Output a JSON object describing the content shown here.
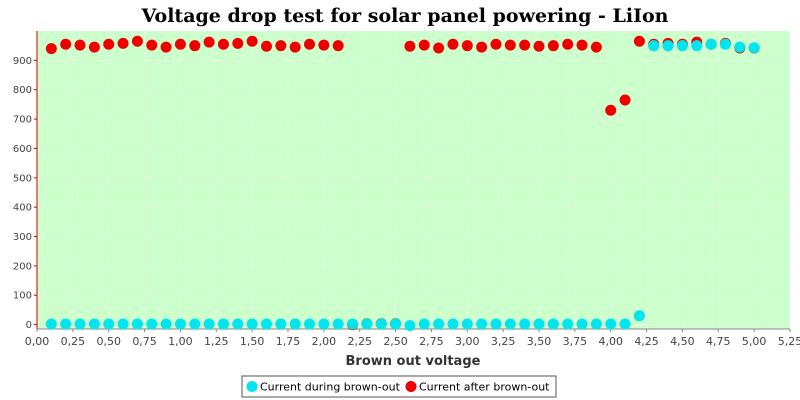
{
  "chart_data": {
    "type": "scatter",
    "title": "Voltage drop test for solar panel powering -  LiIon",
    "xlabel": "Brown out voltage",
    "ylabel": "",
    "xlim": [
      0,
      5.25
    ],
    "ylim": [
      -15,
      1000
    ],
    "x_ticks": [
      "0,00",
      "0,25",
      "0,50",
      "0,75",
      "1,00",
      "1,25",
      "1,50",
      "1,75",
      "2,00",
      "2,25",
      "2,50",
      "2,75",
      "3,00",
      "3,25",
      "3,50",
      "3,75",
      "4,00",
      "4,25",
      "4,50",
      "4,75",
      "5,00",
      "5,25"
    ],
    "y_ticks": [
      0,
      100,
      200,
      300,
      400,
      500,
      600,
      700,
      800,
      900
    ],
    "grid": true,
    "legend_position": "bottom",
    "colors": {
      "plot_background": "#ccffcc",
      "axis": "#cc0000",
      "series_during": "#00e5ee",
      "series_after": "#ee0000"
    },
    "series": [
      {
        "name": "Current during brown-out",
        "points": [
          [
            0.1,
            2
          ],
          [
            0.2,
            2
          ],
          [
            0.3,
            2
          ],
          [
            0.4,
            2
          ],
          [
            0.5,
            2
          ],
          [
            0.6,
            2
          ],
          [
            0.7,
            2
          ],
          [
            0.8,
            2
          ],
          [
            0.9,
            2
          ],
          [
            1.0,
            2
          ],
          [
            1.1,
            2
          ],
          [
            1.2,
            2
          ],
          [
            1.3,
            2
          ],
          [
            1.4,
            2
          ],
          [
            1.5,
            2
          ],
          [
            1.6,
            2
          ],
          [
            1.7,
            2
          ],
          [
            1.8,
            2
          ],
          [
            1.9,
            2
          ],
          [
            2.0,
            2
          ],
          [
            2.1,
            2
          ],
          [
            2.2,
            2
          ],
          [
            2.3,
            2
          ],
          [
            2.4,
            2
          ],
          [
            2.5,
            2
          ],
          [
            2.6,
            -3
          ],
          [
            2.7,
            2
          ],
          [
            2.8,
            2
          ],
          [
            2.9,
            2
          ],
          [
            3.0,
            2
          ],
          [
            3.1,
            2
          ],
          [
            3.2,
            2
          ],
          [
            3.3,
            2
          ],
          [
            3.4,
            2
          ],
          [
            3.5,
            2
          ],
          [
            3.6,
            2
          ],
          [
            3.7,
            2
          ],
          [
            3.8,
            2
          ],
          [
            3.9,
            2
          ],
          [
            4.0,
            2
          ],
          [
            4.1,
            2
          ],
          [
            4.2,
            30
          ],
          [
            4.3,
            950
          ],
          [
            4.4,
            950
          ],
          [
            4.5,
            950
          ],
          [
            4.6,
            950
          ],
          [
            4.7,
            955
          ],
          [
            4.8,
            955
          ],
          [
            4.9,
            945
          ],
          [
            5.0,
            943
          ]
        ]
      },
      {
        "name": "Current after brown-out",
        "points": [
          [
            0.1,
            940
          ],
          [
            0.2,
            955
          ],
          [
            0.3,
            952
          ],
          [
            0.4,
            945
          ],
          [
            0.5,
            955
          ],
          [
            0.6,
            958
          ],
          [
            0.7,
            965
          ],
          [
            0.8,
            952
          ],
          [
            0.9,
            945
          ],
          [
            1.0,
            955
          ],
          [
            1.1,
            950
          ],
          [
            1.2,
            962
          ],
          [
            1.3,
            955
          ],
          [
            1.4,
            958
          ],
          [
            1.5,
            965
          ],
          [
            1.6,
            948
          ],
          [
            1.7,
            950
          ],
          [
            1.8,
            945
          ],
          [
            1.9,
            955
          ],
          [
            2.0,
            952
          ],
          [
            2.1,
            950
          ],
          [
            2.2,
            0
          ],
          [
            2.3,
            3
          ],
          [
            2.4,
            3
          ],
          [
            2.5,
            3
          ],
          [
            2.6,
            948
          ],
          [
            2.7,
            952
          ],
          [
            2.8,
            942
          ],
          [
            2.9,
            955
          ],
          [
            3.0,
            950
          ],
          [
            3.1,
            945
          ],
          [
            3.2,
            955
          ],
          [
            3.3,
            952
          ],
          [
            3.4,
            952
          ],
          [
            3.5,
            948
          ],
          [
            3.6,
            950
          ],
          [
            3.7,
            955
          ],
          [
            3.8,
            952
          ],
          [
            3.9,
            945
          ],
          [
            4.0,
            730
          ],
          [
            4.1,
            765
          ],
          [
            4.2,
            965
          ],
          [
            4.3,
            955
          ],
          [
            4.4,
            958
          ],
          [
            4.5,
            955
          ],
          [
            4.6,
            962
          ],
          [
            4.7,
            955
          ],
          [
            4.8,
            958
          ],
          [
            4.9,
            942
          ],
          [
            5.0,
            942
          ]
        ]
      }
    ]
  }
}
